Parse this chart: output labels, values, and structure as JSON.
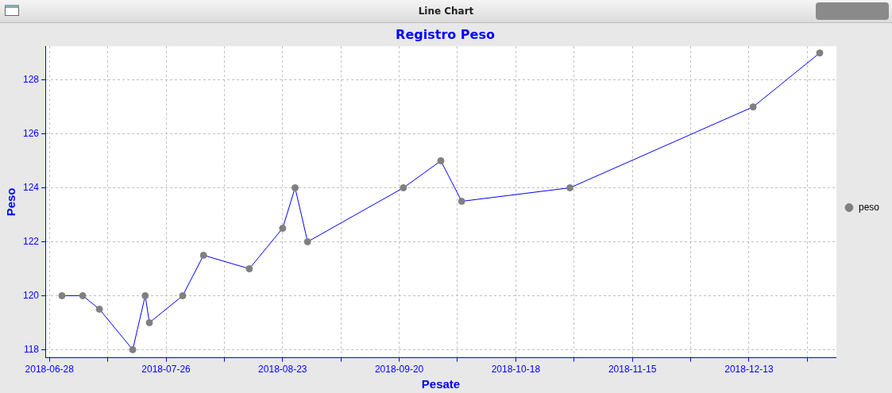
{
  "chart_data": {
    "type": "line",
    "title": "Registro Peso",
    "xlabel": "Pesate",
    "ylabel": "Peso",
    "annotations": [
      "Line Chart"
    ],
    "x": [
      "2018-07-01",
      "2018-07-06",
      "2018-07-10",
      "2018-07-18",
      "2018-07-21",
      "2018-07-22",
      "2018-07-30",
      "2018-08-04",
      "2018-08-15",
      "2018-08-23",
      "2018-08-26",
      "2018-08-29",
      "2018-09-21",
      "2018-09-30",
      "2018-10-05",
      "2018-10-31",
      "2018-12-14",
      "2018-12-30"
    ],
    "series": [
      {
        "name": "peso",
        "color": "#0000ff",
        "values": [
          120,
          120,
          119.5,
          118,
          120,
          119,
          120,
          121.5,
          121,
          122.5,
          124,
          122,
          124,
          125,
          123.5,
          124,
          127,
          129
        ]
      }
    ],
    "xlim": [
      "2018-06-27",
      "2019-01-03"
    ],
    "xticks": [
      "2018-06-28",
      {
        "value": "2018-07-12",
        "label": null
      },
      "2018-07-26",
      {
        "value": "2018-08-09",
        "label": null
      },
      "2018-08-23",
      {
        "value": "2018-09-06",
        "label": null
      },
      "2018-09-20",
      {
        "value": "2018-10-04",
        "label": null
      },
      "2018-10-18",
      {
        "value": "2018-11-01",
        "label": null
      },
      "2018-11-15",
      {
        "value": "2018-11-29",
        "label": null
      },
      "2018-12-13",
      {
        "value": "2018-12-27",
        "label": null
      }
    ],
    "ylim": [
      117.7,
      129.25
    ],
    "yticks": [
      118,
      120,
      122,
      124,
      126,
      128
    ],
    "grid": true,
    "legend": "right",
    "marker": "circle",
    "line_style": "solid"
  }
}
